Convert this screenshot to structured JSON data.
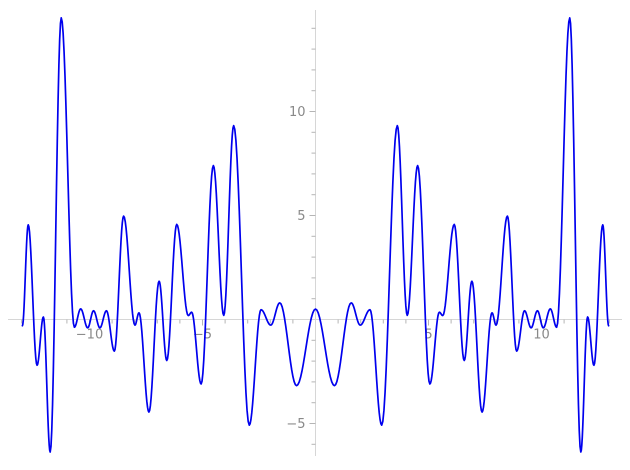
{
  "figure": {
    "background": "#ffffff",
    "title": ""
  },
  "chart_data": {
    "type": "line",
    "title": "",
    "xlabel": "",
    "ylabel": "",
    "grid": false,
    "legend": "none",
    "axes_style": "centered-cross-axes",
    "x_range_shown": [
      -13.6,
      13.6
    ],
    "y_range_shown": [
      -6.9,
      14.9
    ],
    "domain": [
      -12.97,
      12.97
    ],
    "symmetry": "even",
    "interpolation": "half-cosine-between-extrema",
    "series": [
      {
        "name": "oscillatory-function-curve",
        "color": "#0000ee",
        "width": 1.7,
        "extrema_right_half": [
          [
            0.0,
            0.5
          ],
          [
            0.84,
            -3.18
          ],
          [
            1.58,
            0.8
          ],
          [
            1.98,
            -0.27
          ],
          [
            2.41,
            0.47
          ],
          [
            2.93,
            -5.08
          ],
          [
            3.62,
            9.32
          ],
          [
            4.06,
            0.2
          ],
          [
            4.52,
            7.4
          ],
          [
            5.06,
            -3.1
          ],
          [
            5.48,
            0.35
          ],
          [
            5.63,
            0.19
          ],
          [
            6.14,
            4.57
          ],
          [
            6.58,
            -1.97
          ],
          [
            6.92,
            1.84
          ],
          [
            7.37,
            -4.45
          ],
          [
            7.81,
            0.32
          ],
          [
            7.99,
            -0.27
          ],
          [
            8.49,
            4.97
          ],
          [
            8.9,
            -1.52
          ],
          [
            9.25,
            0.42
          ],
          [
            9.54,
            -0.4
          ],
          [
            9.82,
            0.42
          ],
          [
            10.08,
            -0.4
          ],
          [
            10.39,
            0.51
          ],
          [
            10.67,
            -0.37
          ],
          [
            11.25,
            14.5
          ],
          [
            11.74,
            -6.37
          ],
          [
            12.04,
            0.12
          ],
          [
            12.32,
            -2.2
          ],
          [
            12.71,
            4.55
          ],
          [
            12.97,
            -0.3
          ]
        ]
      }
    ],
    "x_axis": {
      "tick_step": 1,
      "tick_min": -13,
      "tick_max": 13,
      "labeled_ticks": [
        {
          "value": -10,
          "label": "−10"
        },
        {
          "value": -5,
          "label": "−5"
        },
        {
          "value": 5,
          "label": "5"
        },
        {
          "value": 10,
          "label": "10"
        }
      ]
    },
    "y_axis": {
      "tick_step": 1,
      "tick_min": -6,
      "tick_max": 14,
      "labeled_ticks": [
        {
          "value": -5,
          "label": "−5"
        },
        {
          "value": 5,
          "label": "5"
        },
        {
          "value": 10,
          "label": "10"
        }
      ]
    },
    "style": {
      "axis_color": "#d6d6d6",
      "tick_color": "#b5b5b5",
      "label_color": "#898989",
      "background": "#ffffff"
    }
  }
}
